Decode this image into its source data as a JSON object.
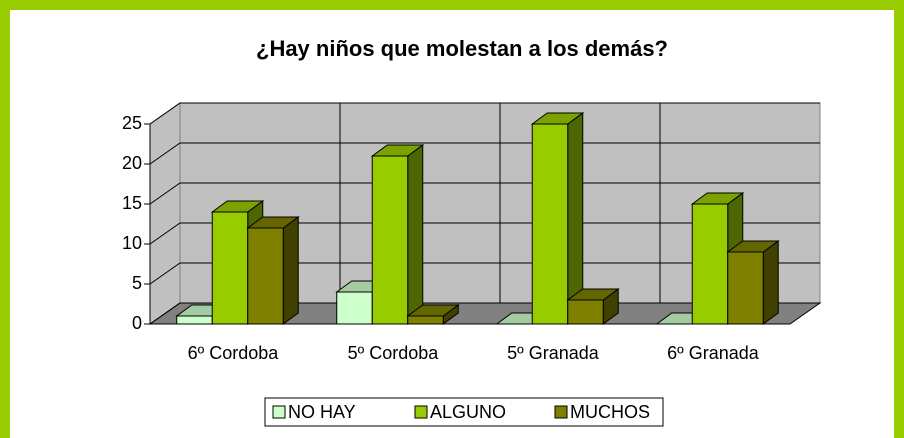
{
  "chart_data": {
    "type": "bar3d",
    "title": "¿Hay niños que molestan a los demás?",
    "categories": [
      "6º Cordoba",
      "5º Cordoba",
      "5º Granada",
      "6º Granada"
    ],
    "series": [
      {
        "name": "NO HAY",
        "color": "#ccffcc",
        "values": [
          1,
          4,
          0,
          0
        ]
      },
      {
        "name": "ALGUNO",
        "color": "#99cc00",
        "values": [
          14,
          21,
          25,
          15
        ]
      },
      {
        "name": "MUCHOS",
        "color": "#808000",
        "values": [
          12,
          1,
          3,
          9
        ]
      }
    ],
    "ylim": [
      0,
      25
    ],
    "yticks": [
      0,
      5,
      10,
      15,
      20,
      25
    ],
    "grid": true,
    "legend": "bottom"
  }
}
